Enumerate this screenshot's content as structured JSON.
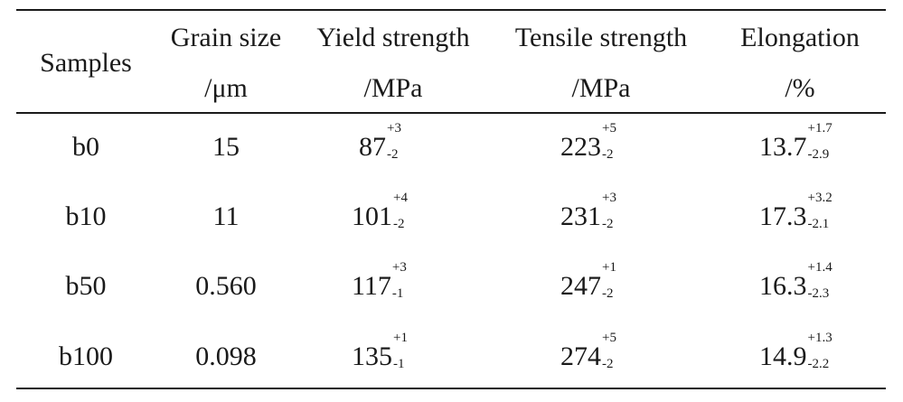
{
  "table": {
    "headers": [
      {
        "line1": "Samples",
        "line2": ""
      },
      {
        "line1": "Grain size",
        "line2": "/μm"
      },
      {
        "line1": "Yield strength",
        "line2": "/MPa"
      },
      {
        "line1": "Tensile strength",
        "line2": "/MPa"
      },
      {
        "line1": "Elongation",
        "line2": "/%"
      }
    ],
    "rows": [
      {
        "sample": "b0",
        "grain_size": "15",
        "yield": {
          "value": "87",
          "plus": "+3",
          "minus": "-2"
        },
        "tensile": {
          "value": "223",
          "plus": "+5",
          "minus": "-2"
        },
        "elongation": {
          "value": "13.7",
          "plus": "+1.7",
          "minus": "-2.9"
        }
      },
      {
        "sample": "b10",
        "grain_size": "11",
        "yield": {
          "value": "101",
          "plus": "+4",
          "minus": "-2"
        },
        "tensile": {
          "value": "231",
          "plus": "+3",
          "minus": "-2"
        },
        "elongation": {
          "value": "17.3",
          "plus": "+3.2",
          "minus": "-2.1"
        }
      },
      {
        "sample": "b50",
        "grain_size": "0.560",
        "yield": {
          "value": "117",
          "plus": "+3",
          "minus": "-1"
        },
        "tensile": {
          "value": "247",
          "plus": "+1",
          "minus": "-2"
        },
        "elongation": {
          "value": "16.3",
          "plus": "+1.4",
          "minus": "-2.3"
        }
      },
      {
        "sample": "b100",
        "grain_size": "0.098",
        "yield": {
          "value": "135",
          "plus": "+1",
          "minus": "-1"
        },
        "tensile": {
          "value": "274",
          "plus": "+5",
          "minus": "-2"
        },
        "elongation": {
          "value": "14.9",
          "plus": "+1.3",
          "minus": "-2.2"
        }
      }
    ]
  }
}
